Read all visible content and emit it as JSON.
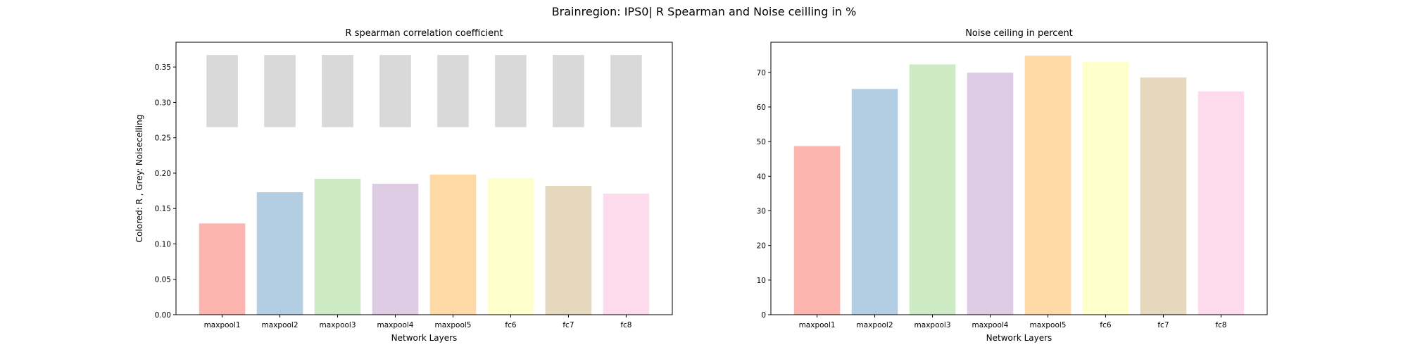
{
  "figure": {
    "suptitle": "Brainregion: IPS0| R Spearman and Noise ceilling in %"
  },
  "chart_data": [
    {
      "type": "bar",
      "title": "R spearman correlation coefficient",
      "xlabel": "Network Layers",
      "ylabel": "Colored: R , Grey: Noisecelling",
      "categories": [
        "maxpool1",
        "maxpool2",
        "maxpool3",
        "maxpool4",
        "maxpool5",
        "fc6",
        "fc7",
        "fc8"
      ],
      "series": [
        {
          "values": [
            0.129,
            0.173,
            0.192,
            0.185,
            0.198,
            0.193,
            0.182,
            0.171
          ]
        }
      ],
      "noise_ceiling": {
        "lower": 0.265,
        "upper": 0.367
      },
      "ylim": [
        0,
        0.385
      ],
      "yticks": [
        0.0,
        0.05,
        0.1,
        0.15,
        0.2,
        0.25,
        0.3,
        0.35
      ],
      "ytick_labels": [
        "0.00",
        "0.05",
        "0.10",
        "0.15",
        "0.20",
        "0.25",
        "0.30",
        "0.35"
      ],
      "grid": false,
      "colors": [
        "#fbb4ae",
        "#b3cde3",
        "#ccebc5",
        "#decbe4",
        "#fed9a6",
        "#ffffcc",
        "#e5d8bd",
        "#fddaec"
      ],
      "noise_color": "#d9d9d9"
    },
    {
      "type": "bar",
      "title": "Noise ceiling in percent",
      "xlabel": "Network Layers",
      "ylabel": "",
      "categories": [
        "maxpool1",
        "maxpool2",
        "maxpool3",
        "maxpool4",
        "maxpool5",
        "fc6",
        "fc7",
        "fc8"
      ],
      "series": [
        {
          "values": [
            48.7,
            65.2,
            72.3,
            69.9,
            74.8,
            73.0,
            68.5,
            64.5
          ]
        }
      ],
      "ylim": [
        0,
        78.7
      ],
      "yticks": [
        0,
        10,
        20,
        30,
        40,
        50,
        60,
        70
      ],
      "ytick_labels": [
        "0",
        "10",
        "20",
        "30",
        "40",
        "50",
        "60",
        "70"
      ],
      "grid": false,
      "colors": [
        "#fbb4ae",
        "#b3cde3",
        "#ccebc5",
        "#decbe4",
        "#fed9a6",
        "#ffffcc",
        "#e5d8bd",
        "#fddaec"
      ]
    }
  ]
}
